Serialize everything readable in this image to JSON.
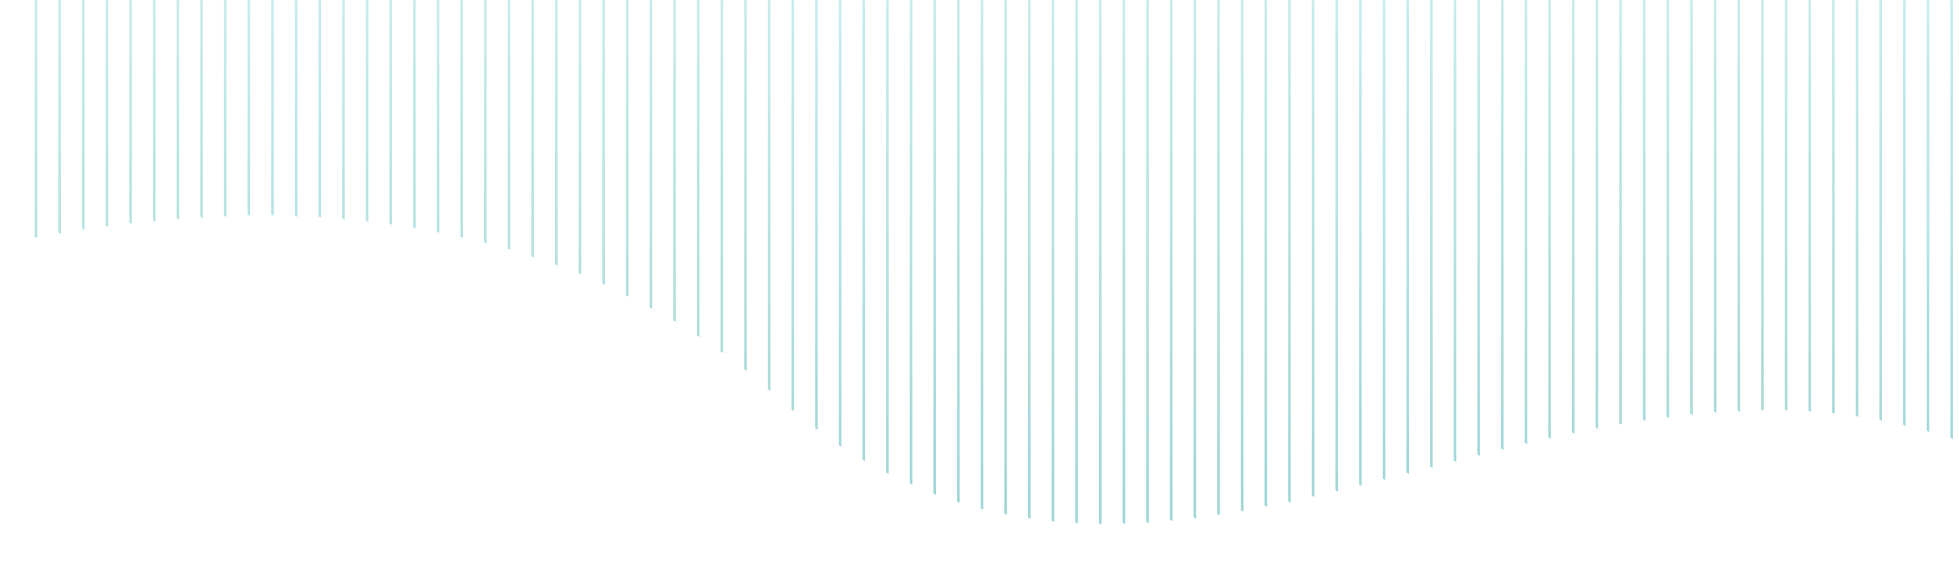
{
  "background_color": "#ffffff",
  "line_color_top": "#c6ecec",
  "line_color_bottom": "#9bd3d3",
  "line_count": 82
}
